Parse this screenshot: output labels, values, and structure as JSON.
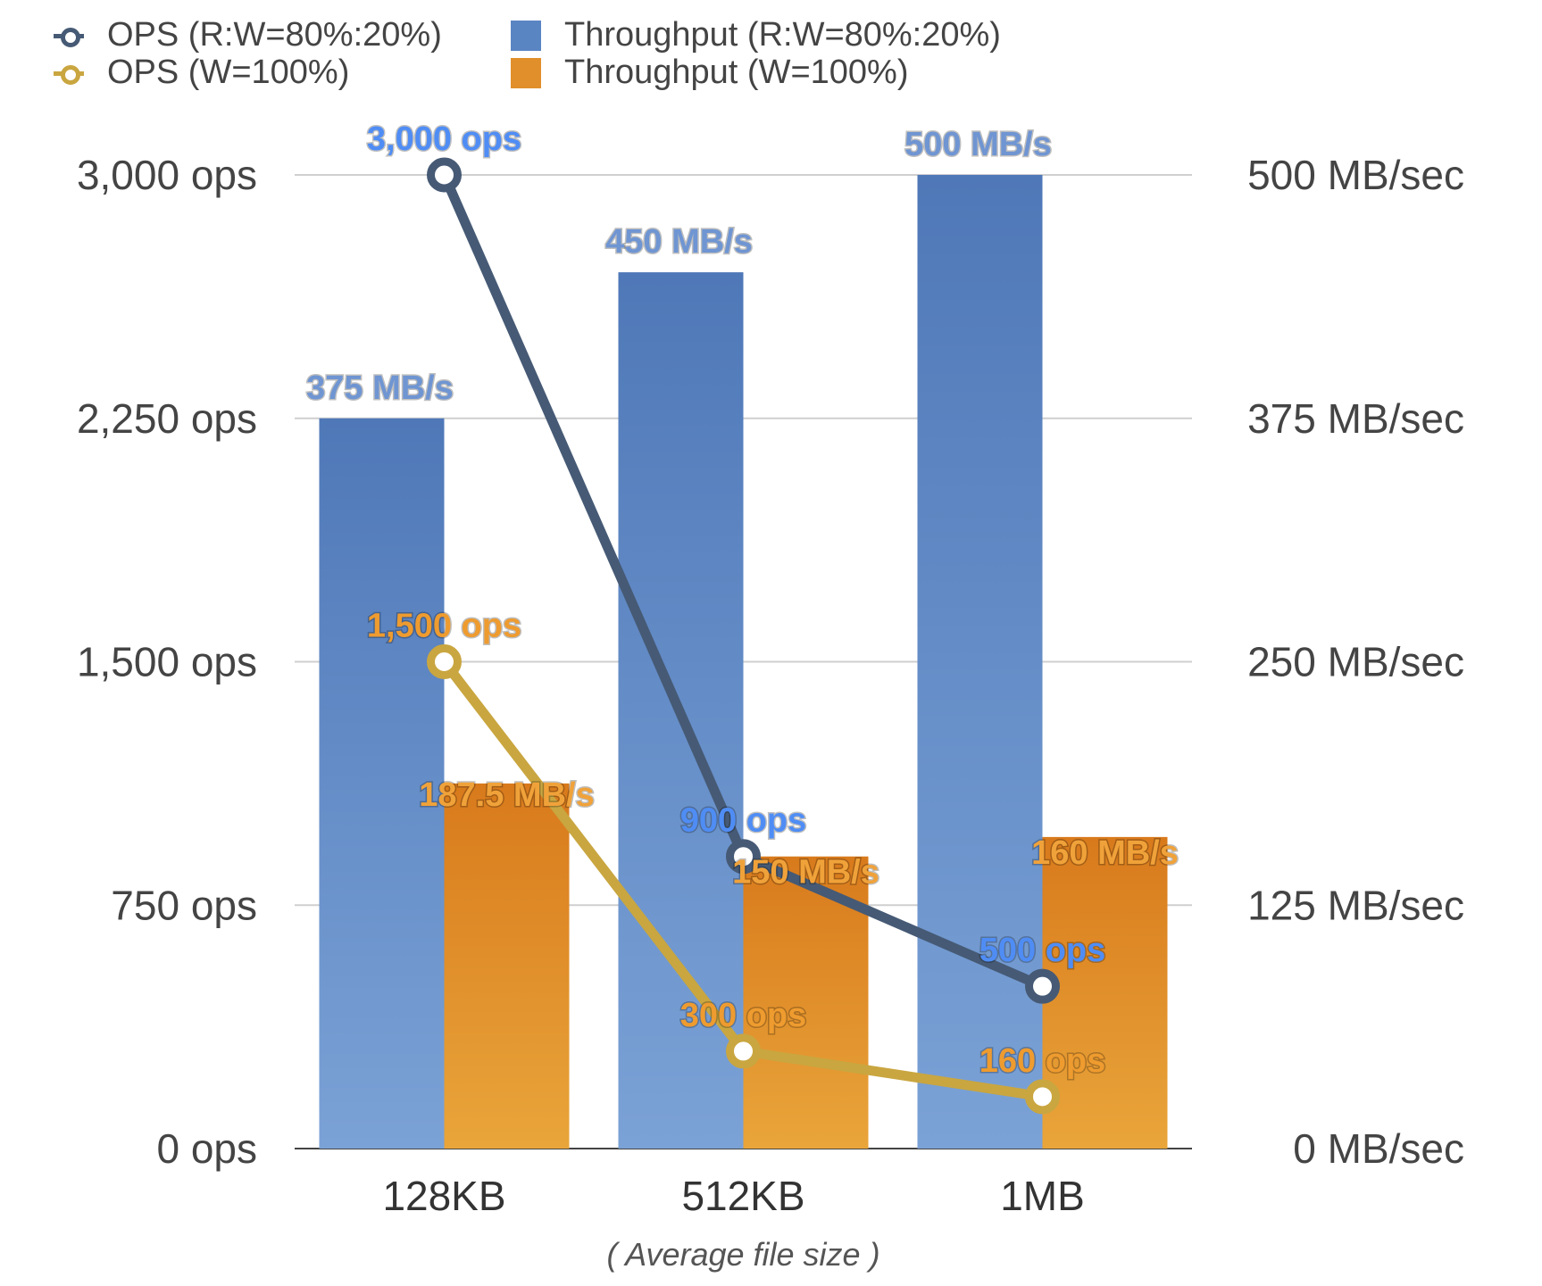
{
  "chart_data": {
    "type": "bar",
    "categories": [
      "128KB",
      "512KB",
      "1MB"
    ],
    "xlabel": "( Average file size )",
    "y_left": {
      "ticks": [
        "3,000 ops",
        "2,250 ops",
        "1,500 ops",
        "750 ops",
        "0 ops"
      ],
      "range": [
        0,
        3000
      ]
    },
    "y_right": {
      "ticks": [
        "500 MB/sec",
        "375 MB/sec",
        "250 MB/sec",
        "125 MB/sec",
        "0 MB/sec"
      ],
      "range": [
        0,
        500
      ]
    },
    "grid": true,
    "legend_position": "top-left",
    "series": [
      {
        "name": "Throughput (R:W=80%:20%)",
        "kind": "bar",
        "axis": "right",
        "color": "#5a85c3",
        "values": [
          375,
          450,
          500
        ],
        "labels": [
          "375 MB/s",
          "450 MB/s",
          "500 MB/s"
        ],
        "label_color": "#6f95d2"
      },
      {
        "name": "Throughput (W=100%)",
        "kind": "bar",
        "axis": "right",
        "color": "#e08f2a",
        "values": [
          187.5,
          150,
          160
        ],
        "labels": [
          "187.5 MB/s",
          "150 MB/s",
          "160 MB/s"
        ],
        "label_color": "#f0a23a"
      },
      {
        "name": "OPS (R:W=80%:20%)",
        "kind": "line",
        "axis": "left",
        "color": "#465a75",
        "values": [
          3000,
          900,
          500
        ],
        "labels": [
          "3,000 ops",
          "900 ops",
          "500 ops"
        ],
        "label_color": "#4f8df5"
      },
      {
        "name": "OPS (W=100%)",
        "kind": "line",
        "axis": "left",
        "color": "#c9a640",
        "values": [
          1500,
          300,
          160
        ],
        "labels": [
          "1,500 ops",
          "300 ops",
          "160 ops"
        ],
        "label_color": "#ee9b2f"
      }
    ]
  }
}
